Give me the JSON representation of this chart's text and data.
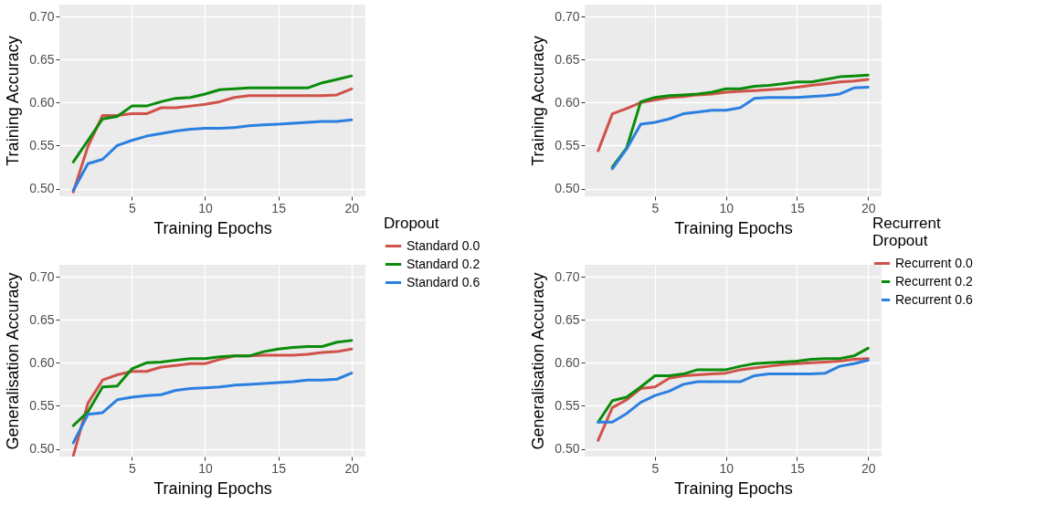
{
  "chart_data": [
    {
      "type": "line",
      "xlabel": "Training Epochs",
      "ylabel": "Training Accuracy",
      "legend_title": "Dropout",
      "legend": "right",
      "grid": true,
      "line_style": "solid",
      "x": [
        1,
        2,
        3,
        4,
        5,
        6,
        7,
        8,
        9,
        10,
        11,
        12,
        13,
        14,
        15,
        16,
        17,
        18,
        19,
        20
      ],
      "xlim": [
        0.05,
        20.95
      ],
      "xticks": [
        5,
        10,
        15,
        20
      ],
      "ylim": [
        0.491,
        0.714
      ],
      "yticks": [
        {
          "value": 0.5,
          "label": "0.50"
        },
        {
          "value": 0.55,
          "label": "0.55"
        },
        {
          "value": 0.6,
          "label": "0.60"
        },
        {
          "value": 0.65,
          "label": "0.65"
        },
        {
          "value": 0.7,
          "label": "0.70"
        }
      ],
      "series": [
        {
          "name": "Standard 0.0",
          "color": "#d0524a",
          "values": [
            0.496,
            0.549,
            0.585,
            0.585,
            0.587,
            0.587,
            0.594,
            0.594,
            0.596,
            0.598,
            0.601,
            0.606,
            0.608,
            0.608,
            0.608,
            0.608,
            0.608,
            0.608,
            0.609,
            0.616
          ]
        },
        {
          "name": "Standard 0.2",
          "color": "#0a8c0a",
          "values": [
            0.531,
            0.556,
            0.581,
            0.584,
            0.596,
            0.596,
            0.601,
            0.605,
            0.606,
            0.61,
            0.615,
            0.616,
            0.617,
            0.617,
            0.617,
            0.617,
            0.617,
            0.623,
            0.627,
            0.631
          ]
        },
        {
          "name": "Standard 0.6",
          "color": "#2b7fe0",
          "values": [
            0.498,
            0.529,
            0.534,
            0.55,
            0.556,
            0.561,
            0.564,
            0.567,
            0.569,
            0.57,
            0.57,
            0.571,
            0.573,
            0.574,
            0.575,
            0.576,
            0.577,
            0.578,
            0.578,
            0.58
          ]
        }
      ]
    },
    {
      "type": "line",
      "xlabel": "Training Epochs",
      "ylabel": "Training Accuracy",
      "legend_title": "Recurrent Dropout",
      "legend": "right",
      "grid": true,
      "line_style": "solid",
      "x": [
        1,
        2,
        3,
        4,
        5,
        6,
        7,
        8,
        9,
        10,
        11,
        12,
        13,
        14,
        15,
        16,
        17,
        18,
        19,
        20
      ],
      "xlim": [
        0.05,
        20.95
      ],
      "xticks": [
        5,
        10,
        15,
        20
      ],
      "ylim": [
        0.491,
        0.714
      ],
      "yticks": [
        {
          "value": 0.5,
          "label": "0.50"
        },
        {
          "value": 0.55,
          "label": "0.55"
        },
        {
          "value": 0.6,
          "label": "0.60"
        },
        {
          "value": 0.65,
          "label": "0.65"
        },
        {
          "value": 0.7,
          "label": "0.70"
        }
      ],
      "series": [
        {
          "name": "Recurrent 0.0",
          "color": "#d0524a",
          "values": [
            0.544,
            0.587,
            0.593,
            0.6,
            0.603,
            0.606,
            0.607,
            0.609,
            0.61,
            0.612,
            0.613,
            0.614,
            0.615,
            0.616,
            0.618,
            0.62,
            0.622,
            0.624,
            0.625,
            0.627
          ]
        },
        {
          "name": "Recurrent 0.2",
          "color": "#0a8c0a",
          "values": [
            null,
            0.525,
            0.547,
            0.601,
            0.606,
            0.608,
            0.609,
            0.61,
            0.612,
            0.616,
            0.616,
            0.619,
            0.62,
            0.622,
            0.624,
            0.624,
            0.627,
            0.63,
            0.631,
            0.632
          ]
        },
        {
          "name": "Recurrent 0.6",
          "color": "#2b7fe0",
          "values": [
            null,
            0.523,
            0.546,
            0.575,
            0.577,
            0.581,
            0.587,
            0.589,
            0.591,
            0.591,
            0.594,
            0.605,
            0.606,
            0.606,
            0.606,
            0.607,
            0.608,
            0.61,
            0.617,
            0.618
          ]
        }
      ]
    },
    {
      "type": "line",
      "xlabel": "Training Epochs",
      "ylabel": "Generalisation Accuracy",
      "grid": true,
      "line_style": "solid",
      "x": [
        1,
        2,
        3,
        4,
        5,
        6,
        7,
        8,
        9,
        10,
        11,
        12,
        13,
        14,
        15,
        16,
        17,
        18,
        19,
        20
      ],
      "xlim": [
        0.05,
        20.95
      ],
      "xticks": [
        5,
        10,
        15,
        20
      ],
      "ylim": [
        0.491,
        0.714
      ],
      "yticks": [
        {
          "value": 0.5,
          "label": "0.50"
        },
        {
          "value": 0.55,
          "label": "0.55"
        },
        {
          "value": 0.6,
          "label": "0.60"
        },
        {
          "value": 0.65,
          "label": "0.65"
        },
        {
          "value": 0.7,
          "label": "0.70"
        }
      ],
      "series": [
        {
          "color": "#d0524a",
          "values": [
            0.492,
            0.553,
            0.58,
            0.586,
            0.59,
            0.59,
            0.595,
            0.597,
            0.599,
            0.599,
            0.604,
            0.608,
            0.608,
            0.609,
            0.609,
            0.609,
            0.61,
            0.612,
            0.613,
            0.616
          ]
        },
        {
          "color": "#0a8c0a",
          "values": [
            0.527,
            0.543,
            0.572,
            0.573,
            0.593,
            0.6,
            0.601,
            0.603,
            0.605,
            0.605,
            0.607,
            0.608,
            0.608,
            0.613,
            0.616,
            0.618,
            0.619,
            0.619,
            0.624,
            0.626
          ]
        },
        {
          "color": "#2b7fe0",
          "values": [
            0.507,
            0.54,
            0.542,
            0.557,
            0.56,
            0.562,
            0.563,
            0.568,
            0.57,
            0.571,
            0.572,
            0.574,
            0.575,
            0.576,
            0.577,
            0.578,
            0.58,
            0.58,
            0.581,
            0.588
          ]
        }
      ]
    },
    {
      "type": "line",
      "xlabel": "Training Epochs",
      "ylabel": "Generalisation Accuracy",
      "grid": true,
      "line_style": "solid",
      "x": [
        1,
        2,
        3,
        4,
        5,
        6,
        7,
        8,
        9,
        10,
        11,
        12,
        13,
        14,
        15,
        16,
        17,
        18,
        19,
        20
      ],
      "xlim": [
        0.05,
        20.95
      ],
      "xticks": [
        5,
        10,
        15,
        20
      ],
      "ylim": [
        0.491,
        0.714
      ],
      "yticks": [
        {
          "value": 0.5,
          "label": "0.50"
        },
        {
          "value": 0.55,
          "label": "0.55"
        },
        {
          "value": 0.6,
          "label": "0.60"
        },
        {
          "value": 0.65,
          "label": "0.65"
        },
        {
          "value": 0.7,
          "label": "0.70"
        }
      ],
      "series": [
        {
          "color": "#d0524a",
          "values": [
            0.51,
            0.548,
            0.557,
            0.57,
            0.572,
            0.582,
            0.585,
            0.586,
            0.587,
            0.588,
            0.592,
            0.594,
            0.596,
            0.598,
            0.599,
            0.6,
            0.601,
            0.602,
            0.604,
            0.605
          ]
        },
        {
          "color": "#0a8c0a",
          "values": [
            0.531,
            0.556,
            0.56,
            0.572,
            0.585,
            0.585,
            0.587,
            0.592,
            0.592,
            0.592,
            0.596,
            0.599,
            0.6,
            0.601,
            0.602,
            0.604,
            0.605,
            0.605,
            0.608,
            0.617
          ]
        },
        {
          "color": "#2b7fe0",
          "values": [
            0.531,
            0.531,
            0.541,
            0.554,
            0.562,
            0.567,
            0.575,
            0.578,
            0.578,
            0.578,
            0.578,
            0.585,
            0.587,
            0.587,
            0.587,
            0.587,
            0.588,
            0.596,
            0.599,
            0.603
          ]
        }
      ]
    }
  ]
}
